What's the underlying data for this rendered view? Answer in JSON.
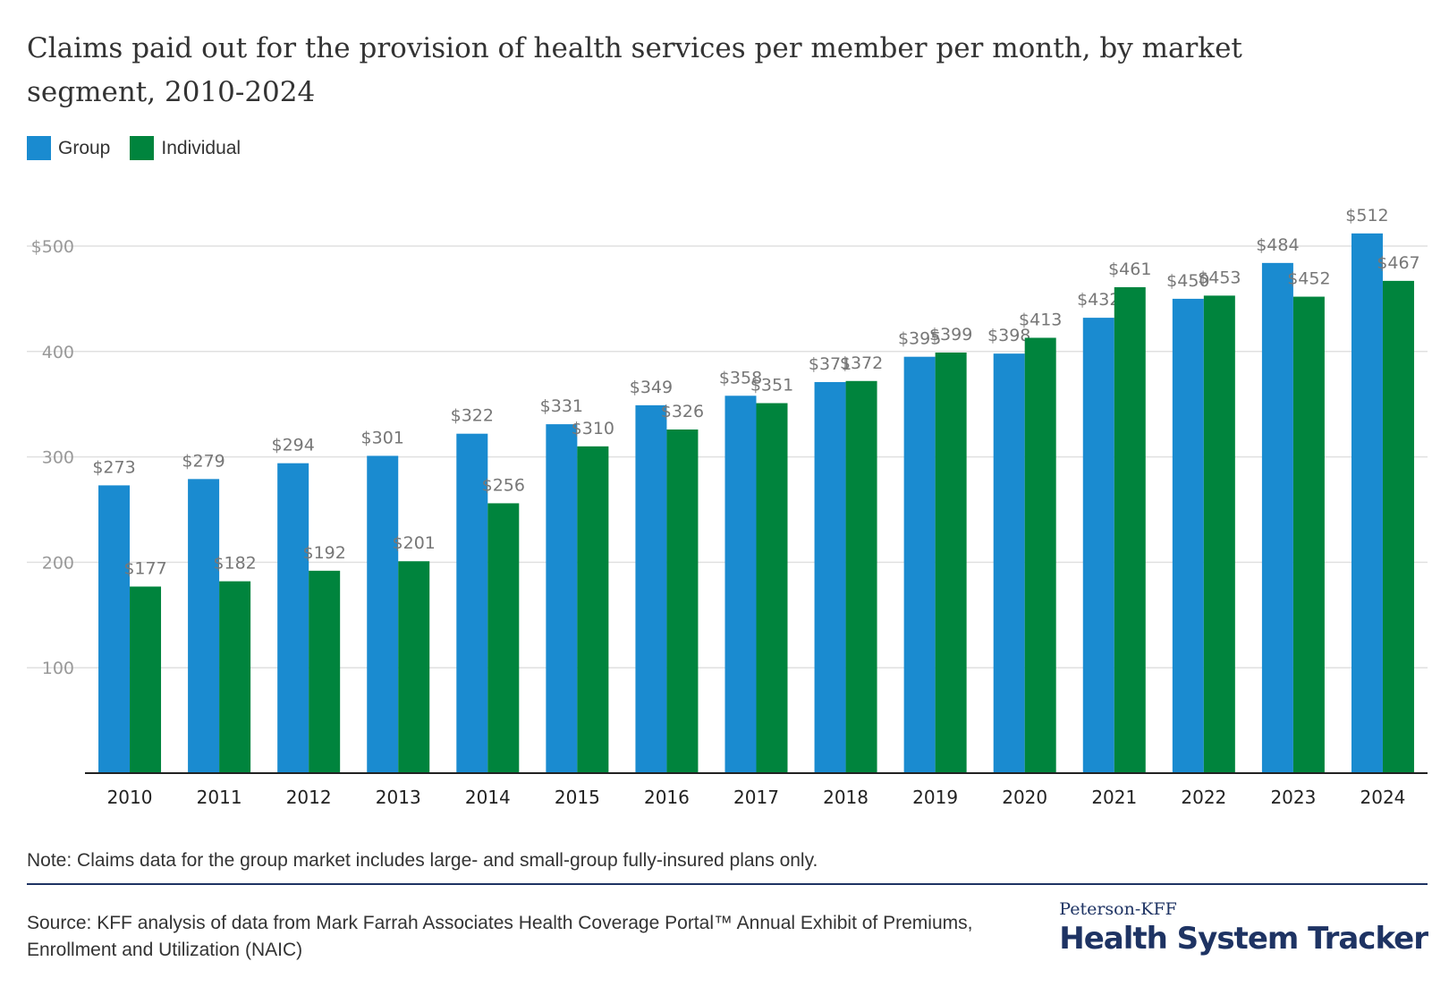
{
  "title": "Claims paid out for the provision of health services per member per month, by market segment, 2010-2024",
  "legend": {
    "group_label": "Group",
    "individual_label": "Individual"
  },
  "colors": {
    "group": "#1a8bd0",
    "individual": "#00843d",
    "grid": "#e0e0e0",
    "axis": "#222222",
    "tick": "#999999",
    "label": "#777777"
  },
  "note": "Note: Claims data for the group market includes large- and small-group fully-insured plans only.",
  "source": "Source: KFF analysis of data from Mark Farrah Associates Health Coverage Portal™ Annual Exhibit of Premiums, Enrollment and Utilization (NAIC)",
  "brand": {
    "top": "Peterson-KFF",
    "main": "Health System Tracker"
  },
  "chart_data": {
    "type": "bar",
    "title": "Claims paid out for the provision of health services per member per month, by market segment, 2010-2024",
    "xlabel": "",
    "ylabel": "",
    "ylim": [
      0,
      500
    ],
    "yticks": [
      100,
      200,
      300,
      400,
      500
    ],
    "ytick_labels": [
      "100",
      "200",
      "300",
      "400",
      "$500"
    ],
    "categories": [
      "2010",
      "2011",
      "2012",
      "2013",
      "2014",
      "2015",
      "2016",
      "2017",
      "2018",
      "2019",
      "2020",
      "2021",
      "2022",
      "2023",
      "2024"
    ],
    "series": [
      {
        "name": "Group",
        "values": [
          273,
          279,
          294,
          301,
          322,
          331,
          349,
          358,
          371,
          395,
          398,
          432,
          450,
          484,
          512
        ],
        "labels": [
          "$273",
          "$279",
          "$294",
          "$301",
          "$322",
          "$331",
          "$349",
          "$358",
          "$371",
          "$395",
          "$398",
          "$432",
          "$450",
          "$484",
          "$512"
        ]
      },
      {
        "name": "Individual",
        "values": [
          177,
          182,
          192,
          201,
          256,
          310,
          326,
          351,
          372,
          399,
          413,
          461,
          453,
          452,
          467
        ],
        "labels": [
          "$177",
          "$182",
          "$192",
          "$201",
          "$256",
          "$310",
          "$326",
          "$351",
          "$372",
          "$399",
          "$413",
          "$461",
          "$453",
          "$452",
          "$467"
        ]
      }
    ],
    "grid": true,
    "legend_position": "top-left"
  }
}
